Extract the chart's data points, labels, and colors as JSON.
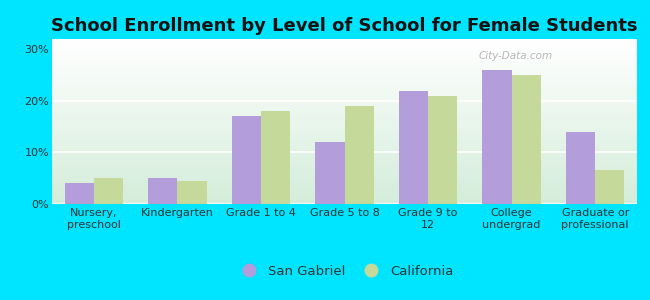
{
  "title": "School Enrollment by Level of School for Female Students",
  "categories": [
    "Nursery,\npreschool",
    "Kindergarten",
    "Grade 1 to 4",
    "Grade 5 to 8",
    "Grade 9 to\n12",
    "College\nundergrad",
    "Graduate or\nprofessional"
  ],
  "san_gabriel": [
    4.0,
    5.0,
    17.0,
    12.0,
    22.0,
    26.0,
    14.0
  ],
  "california": [
    5.0,
    4.5,
    18.0,
    19.0,
    21.0,
    25.0,
    6.5
  ],
  "san_gabriel_color": "#b39ddb",
  "california_color": "#c5d99a",
  "background_outer": "#00e5ff",
  "grad_color_top": "#ffffff",
  "grad_color_bottom": "#d4edda",
  "yticks": [
    0,
    10,
    20,
    30
  ],
  "ylim": [
    0,
    32
  ],
  "legend_labels": [
    "San Gabriel",
    "California"
  ],
  "title_fontsize": 13,
  "axis_label_fontsize": 8,
  "legend_fontsize": 9.5,
  "watermark": "City-Data.com"
}
